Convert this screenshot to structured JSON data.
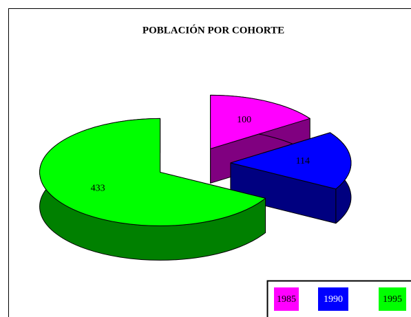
{
  "chart_data": {
    "type": "pie",
    "title": "POBLACIÓN POR COHORTE",
    "categories": [
      "1985",
      "1990",
      "1995"
    ],
    "values": [
      100,
      114,
      433
    ],
    "colors": [
      "#ff00ff",
      "#0000ff",
      "#00ff00"
    ],
    "shade_colors": [
      "#800080",
      "#000080",
      "#008000"
    ],
    "legend": "bottom-right"
  }
}
